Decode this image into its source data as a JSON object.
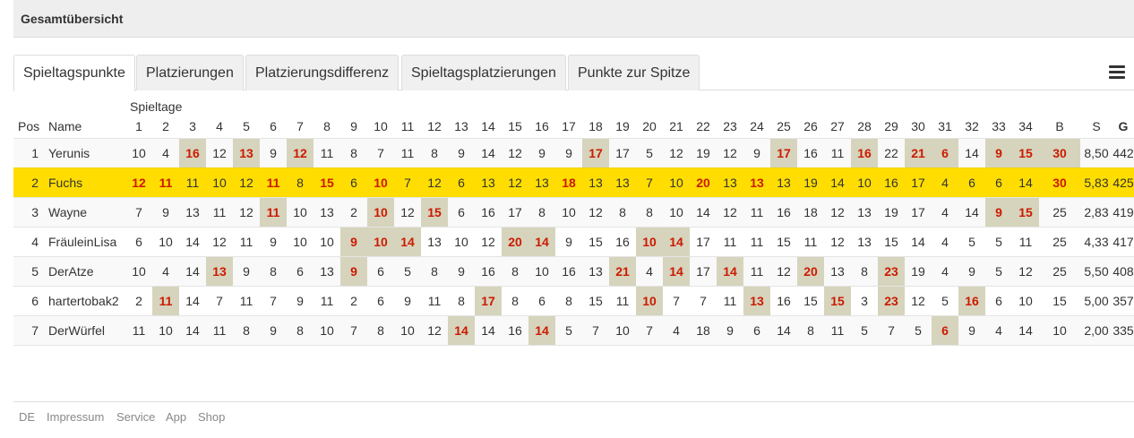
{
  "panel": {
    "title": "Gesamtübersicht"
  },
  "tabs": [
    {
      "label": "Spieltagspunkte",
      "active": true
    },
    {
      "label": "Platzierungen"
    },
    {
      "label": "Platzierungsdifferenz"
    },
    {
      "label": "Spieltagsplatzierungen"
    },
    {
      "label": "Punkte zur Spitze"
    }
  ],
  "menu_icon": "hamburger-menu-icon",
  "table": {
    "group_label": "Spieltage",
    "headers": {
      "pos": "Pos",
      "name": "Name",
      "b": "B",
      "s": "S",
      "g": "G"
    },
    "matchdays": [
      "1",
      "2",
      "3",
      "4",
      "5",
      "6",
      "7",
      "8",
      "9",
      "10",
      "11",
      "12",
      "13",
      "14",
      "15",
      "16",
      "17",
      "18",
      "19",
      "20",
      "21",
      "22",
      "23",
      "24",
      "25",
      "26",
      "27",
      "28",
      "29",
      "30",
      "31",
      "32",
      "33",
      "34"
    ],
    "rows": [
      {
        "pos": "1",
        "name": "Yerunis",
        "scores": [
          "10",
          "4",
          "16",
          "12",
          "13",
          "9",
          "12",
          "11",
          "8",
          "7",
          "11",
          "8",
          "9",
          "14",
          "12",
          "9",
          "9",
          "17",
          "17",
          "5",
          "12",
          "19",
          "12",
          "9",
          "17",
          "16",
          "11",
          "16",
          "22",
          "21",
          "6",
          "14",
          "9",
          "15"
        ],
        "best": [
          3,
          5,
          7,
          18,
          25,
          28,
          30,
          31,
          33,
          34
        ],
        "b": "30",
        "s": "8,50",
        "g": "442",
        "b_best": true
      },
      {
        "pos": "2",
        "name": "Fuchs",
        "highlight": true,
        "scores": [
          "12",
          "11",
          "11",
          "10",
          "12",
          "11",
          "8",
          "15",
          "6",
          "10",
          "7",
          "12",
          "6",
          "13",
          "12",
          "13",
          "18",
          "13",
          "13",
          "7",
          "10",
          "20",
          "13",
          "13",
          "13",
          "19",
          "14",
          "10",
          "16",
          "17",
          "4",
          "6",
          "6",
          "14"
        ],
        "best": [
          1,
          2,
          6,
          8,
          10,
          17,
          22,
          24
        ],
        "b": "30",
        "s": "5,83",
        "g": "425",
        "b_best": true
      },
      {
        "pos": "3",
        "name": "Wayne",
        "scores": [
          "7",
          "9",
          "13",
          "11",
          "12",
          "11",
          "10",
          "13",
          "2",
          "10",
          "12",
          "15",
          "6",
          "16",
          "17",
          "8",
          "10",
          "12",
          "8",
          "8",
          "10",
          "14",
          "12",
          "11",
          "16",
          "18",
          "12",
          "13",
          "19",
          "17",
          "4",
          "14",
          "9",
          "15"
        ],
        "best": [
          6,
          10,
          12,
          33,
          34
        ],
        "b": "25",
        "s": "2,83",
        "g": "419"
      },
      {
        "pos": "4",
        "name": "FräuleinLisa",
        "scores": [
          "6",
          "10",
          "14",
          "12",
          "11",
          "9",
          "10",
          "10",
          "9",
          "10",
          "14",
          "13",
          "10",
          "12",
          "20",
          "14",
          "9",
          "15",
          "16",
          "10",
          "14",
          "17",
          "11",
          "11",
          "15",
          "11",
          "12",
          "13",
          "15",
          "14",
          "4",
          "5",
          "5",
          "11"
        ],
        "best": [
          9,
          10,
          11,
          15,
          16,
          20,
          21
        ],
        "b": "25",
        "s": "4,33",
        "g": "417"
      },
      {
        "pos": "5",
        "name": "DerAtze",
        "scores": [
          "10",
          "4",
          "14",
          "13",
          "9",
          "8",
          "6",
          "13",
          "9",
          "6",
          "5",
          "8",
          "9",
          "16",
          "8",
          "10",
          "16",
          "13",
          "21",
          "4",
          "14",
          "17",
          "14",
          "11",
          "12",
          "20",
          "13",
          "8",
          "23",
          "19",
          "4",
          "9",
          "5",
          "12"
        ],
        "best": [
          4,
          9,
          19,
          21,
          23,
          26,
          29
        ],
        "b": "25",
        "s": "5,50",
        "g": "408"
      },
      {
        "pos": "6",
        "name": "hartertobak2",
        "scores": [
          "2",
          "11",
          "14",
          "7",
          "11",
          "7",
          "9",
          "11",
          "2",
          "6",
          "9",
          "11",
          "8",
          "17",
          "8",
          "6",
          "8",
          "15",
          "11",
          "10",
          "7",
          "7",
          "11",
          "13",
          "16",
          "15",
          "15",
          "3",
          "23",
          "12",
          "5",
          "16",
          "6",
          "10"
        ],
        "best": [
          2,
          14,
          20,
          24,
          27,
          29,
          32
        ],
        "b": "15",
        "s": "5,00",
        "g": "357"
      },
      {
        "pos": "7",
        "name": "DerWürfel",
        "scores": [
          "11",
          "10",
          "14",
          "11",
          "8",
          "9",
          "8",
          "10",
          "7",
          "8",
          "10",
          "12",
          "14",
          "14",
          "16",
          "14",
          "5",
          "7",
          "10",
          "7",
          "4",
          "18",
          "9",
          "6",
          "14",
          "8",
          "11",
          "5",
          "7",
          "5",
          "6",
          "9",
          "4",
          "14"
        ],
        "best": [
          13,
          16,
          31
        ],
        "b": "10",
        "s": "2,00",
        "g": "335"
      }
    ]
  },
  "footer": {
    "links": [
      "DE",
      "Impressum",
      "Service",
      "App",
      "Shop"
    ]
  },
  "colors": {
    "highlight_row": "#ffdd00",
    "best_cell_bg": "#d6d4bd",
    "best_cell_text": "#cc1a00"
  }
}
